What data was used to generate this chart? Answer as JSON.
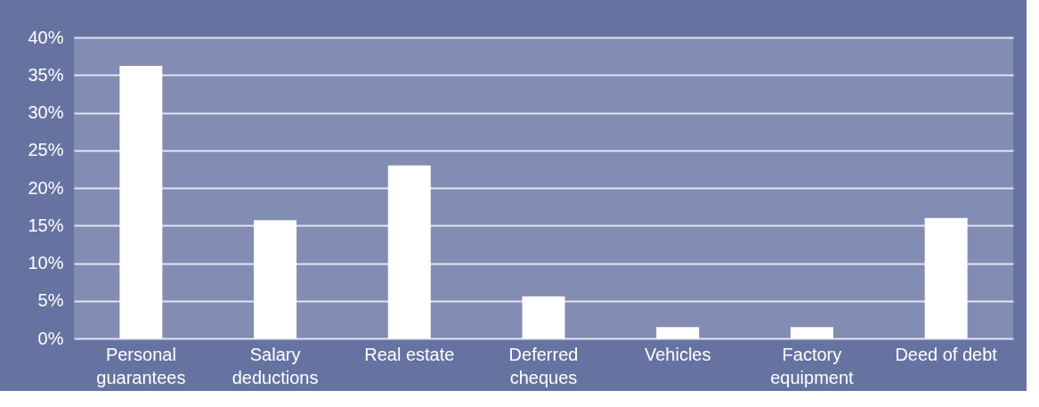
{
  "chart_data": {
    "type": "bar",
    "categories": [
      "Personal guarantees",
      "Salary deductions",
      "Real estate",
      "Deferred cheques",
      "Vehicles",
      "Factory equipment",
      "Deed of debt"
    ],
    "values": [
      36.2,
      15.7,
      23.0,
      5.6,
      1.5,
      1.5,
      16.0
    ],
    "color": "#ffffff",
    "ylim": [
      0,
      40
    ],
    "yticks": [
      {
        "value": 0,
        "label": "0%"
      },
      {
        "value": 5,
        "label": "5%"
      },
      {
        "value": 10,
        "label": "10%"
      },
      {
        "value": 15,
        "label": "15%"
      },
      {
        "value": 20,
        "label": "20%"
      },
      {
        "value": 25,
        "label": "25%"
      },
      {
        "value": 30,
        "label": "30%"
      },
      {
        "value": 35,
        "label": "35%"
      },
      {
        "value": 40,
        "label": "40%"
      }
    ],
    "grid": "y"
  }
}
